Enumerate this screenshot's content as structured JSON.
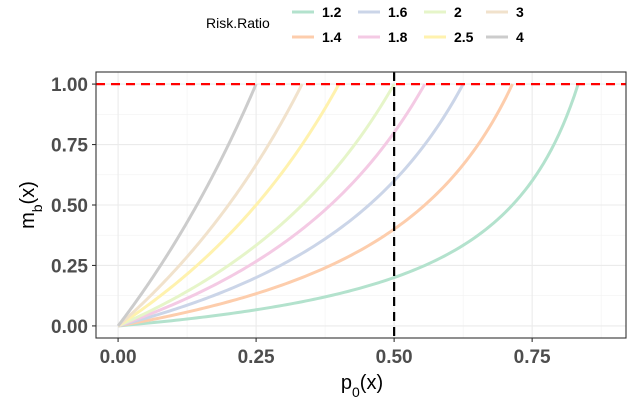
{
  "chart_data": {
    "type": "line",
    "xlabel": "p",
    "xlabel_sub": "0",
    "xlabel_tail": "(x)",
    "ylabel": "m",
    "ylabel_sub": "b",
    "ylabel_tail": "(x)",
    "xlim": [
      -0.04,
      0.92
    ],
    "ylim": [
      -0.05,
      1.05
    ],
    "x_ticks": [
      0.0,
      0.25,
      0.5,
      0.75
    ],
    "x_tick_labels": [
      "0.00",
      "0.25",
      "0.50",
      "0.75"
    ],
    "y_ticks": [
      0.0,
      0.25,
      0.5,
      0.75,
      1.0
    ],
    "y_tick_labels": [
      "0.00",
      "0.25",
      "0.50",
      "0.75",
      "1.00"
    ],
    "grid": true,
    "legend": {
      "title": "Risk.Ratio",
      "placement": "top",
      "entries": [
        "1.2",
        "1.4",
        "1.6",
        "1.8",
        "2",
        "2.5",
        "3",
        "4"
      ]
    },
    "series": [
      {
        "name": "1.2",
        "ratio": 1.2,
        "color": "#b3e2cd"
      },
      {
        "name": "1.4",
        "ratio": 1.4,
        "color": "#fdcdac"
      },
      {
        "name": "1.6",
        "ratio": 1.6,
        "color": "#cbd5e8"
      },
      {
        "name": "1.8",
        "ratio": 1.8,
        "color": "#f4cae4"
      },
      {
        "name": "2",
        "ratio": 2.0,
        "color": "#e6f5c9"
      },
      {
        "name": "2.5",
        "ratio": 2.5,
        "color": "#fff2ae"
      },
      {
        "name": "3",
        "ratio": 3.0,
        "color": "#f1e2cc"
      },
      {
        "name": "4",
        "ratio": 4.0,
        "color": "#cccccc"
      }
    ],
    "reference_lines": [
      {
        "orientation": "horizontal",
        "value": 1.0,
        "color": "#ff0000",
        "style": "dashed"
      },
      {
        "orientation": "vertical",
        "value": 0.5,
        "color": "#000000",
        "style": "dashed"
      }
    ]
  }
}
